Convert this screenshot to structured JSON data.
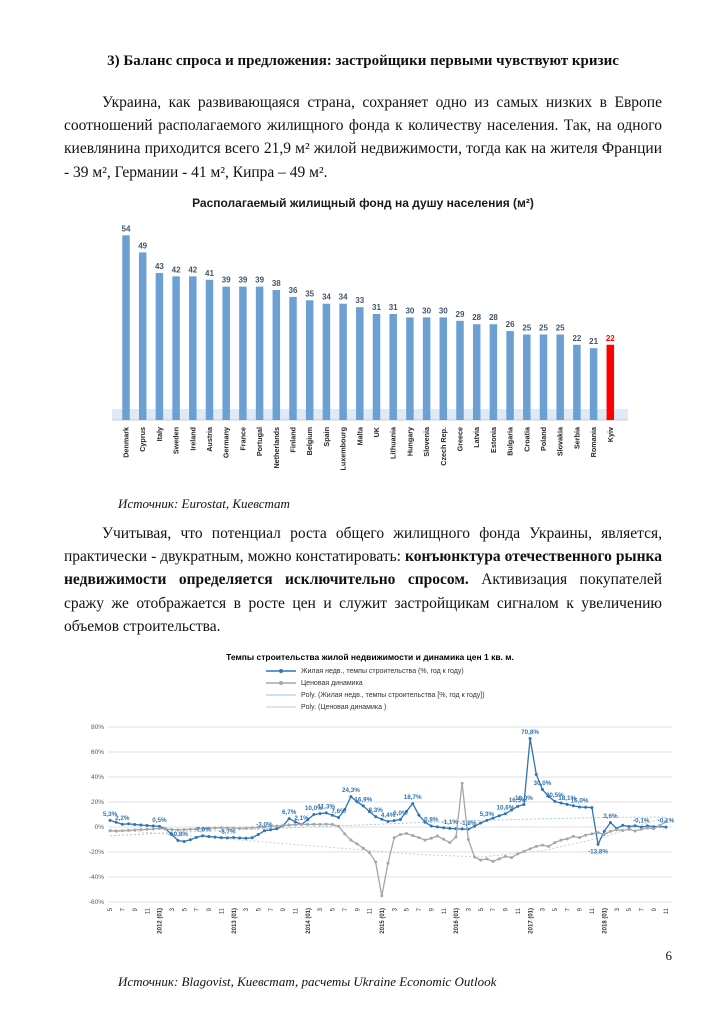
{
  "page": {
    "number": "6"
  },
  "heading": "3) Баланс спроса и предложения: застройщики первыми чувствуют кризис",
  "paragraph1": "Украина, как развивающаяся страна, сохраняет одно из самых низких в Европе соотношений располагаемого жилищного фонда к количеству населения. Так, на одного киевлянина приходится всего 21,9 м² жилой недвижимости, тогда как на жителя Франции - 39 м², Германии - 41 м², Кипра – 49 м².",
  "source1": "Источник: Eurostat, Киевстат",
  "paragraph2": {
    "normal1": "Учитывая, что потенциал роста общего жилищного фонда Украины, является, практически - двукратным, можно констатировать: ",
    "bold": "конъюнктура отечественного рынка недвижимости определяется исключительно спросом.",
    "normal2": " Активизация покупателей сражу же отображается в росте цен и служит застройщикам сигналом к увеличению объемов строительства."
  },
  "source2": "Источник: Blagovist, Киевстат, расчеты Ukraine Economic Outlook",
  "chart_data": [
    {
      "type": "bar",
      "title": "Располагаемый жилищный фонд на душу населения (м²)",
      "categories": [
        "Denmark",
        "Cyprus",
        "Italy",
        "Sweden",
        "Ireland",
        "Austria",
        "Germany",
        "France",
        "Portugal",
        "Netherlands",
        "Finland",
        "Belgium",
        "Spain",
        "Luxembourg",
        "Malta",
        "UK",
        "Lithuania",
        "Hungary",
        "Slovenia",
        "Czech Rep.",
        "Greece",
        "Latvia",
        "Estonia",
        "Bulgaria",
        "Croatia",
        "Poland",
        "Slovakia",
        "Serbia",
        "Romania",
        "Kyiv"
      ],
      "values": [
        54,
        49,
        43,
        42,
        42,
        41,
        39,
        39,
        39,
        38,
        36,
        35,
        34,
        34,
        33,
        31,
        31,
        30,
        30,
        30,
        29,
        28,
        28,
        26,
        25,
        25,
        25,
        22,
        21,
        22
      ],
      "highlight_category": "Kyiv",
      "bar_color": "#6CA0D3",
      "highlight_color": "#FF0000",
      "label_color": "#44546A",
      "ylim": [
        0,
        60
      ],
      "grid": false,
      "legend": "none"
    },
    {
      "type": "line",
      "title": "Темпы строительства жилой недвижимости и динамика цен 1 кв. м.",
      "ylim": [
        -60,
        80
      ],
      "grid": true,
      "legend_position": "top-left",
      "yticks": [
        "80%",
        "60%",
        "40%",
        "20%",
        "0%",
        "-20%",
        "-40%",
        "-60%"
      ],
      "x_labels": [
        "5",
        "7",
        "9",
        "11",
        "2012 (01)",
        "3",
        "5",
        "7",
        "9",
        "11",
        "2013 (01)",
        "3",
        "5",
        "7",
        "9",
        "11",
        "2014 (01)",
        "3",
        "5",
        "7",
        "9",
        "11",
        "2015 (01)",
        "3",
        "5",
        "7",
        "9",
        "11",
        "2016 (01)",
        "3",
        "5",
        "7",
        "9",
        "11",
        "2017 (01)",
        "3",
        "5",
        "7",
        "9",
        "11",
        "2018 (01)",
        "3",
        "5",
        "7",
        "9",
        "11"
      ],
      "x_label_month_step": 2,
      "series": [
        {
          "name": "Жилая недв., темпы строительства (%, год к году)",
          "color": "#2E75B6",
          "style": "solid",
          "markers": true,
          "step": 1,
          "values": [
            5.3,
            3.8,
            2.2,
            2.6,
            2.0,
            1.6,
            1.2,
            0.9,
            0.5,
            -1.5,
            -6.0,
            -10.8,
            -11.6,
            -10.2,
            -8.3,
            -7.0,
            -7.6,
            -8.1,
            -8.5,
            -8.7,
            -8.4,
            -8.8,
            -9.0,
            -8.6,
            -6.0,
            -3.0,
            -2.2,
            -1.4,
            1.0,
            6.7,
            4.2,
            2.1,
            5.8,
            10.0,
            10.7,
            11.3,
            9.4,
            7.6,
            14.0,
            24.3,
            20.2,
            16.9,
            12.3,
            8.3,
            6.2,
            4.4,
            5.1,
            6.0,
            12.5,
            18.7,
            9.5,
            3.8,
            0.8,
            0.1,
            -0.6,
            -1.1,
            -1.4,
            -1.6,
            -1.8,
            0.6,
            3.2,
            5.3,
            7.1,
            9.0,
            10.6,
            13.6,
            16.5,
            18.0,
            70.8,
            42.0,
            30.0,
            24.5,
            20.5,
            19.2,
            18.1,
            17.0,
            16.0,
            15.8,
            15.5,
            -13.8,
            -3.5,
            3.6,
            -1.2,
            1.4,
            0.4,
            1.0,
            -0.1,
            0.9,
            0.2,
            0.6,
            -0.1
          ]
        },
        {
          "name": "Ценовая динамика",
          "color": "#A6A6A6",
          "style": "solid",
          "markers": true,
          "step": 1,
          "values": [
            -3.0,
            -3.3,
            -3.0,
            -2.7,
            -2.4,
            -2.1,
            -1.9,
            -1.6,
            -1.2,
            -1.6,
            -2.0,
            -2.3,
            -2.1,
            -1.8,
            -1.5,
            -1.2,
            -1.0,
            -0.8,
            -0.6,
            -0.7,
            -0.9,
            -1.1,
            -0.9,
            -0.6,
            -0.3,
            0.0,
            0.4,
            0.8,
            1.2,
            1.6,
            1.9,
            2.1,
            2.0,
            2.2,
            2.1,
            2.3,
            2.1,
            0.6,
            -5.5,
            -10.5,
            -13.5,
            -17.0,
            -20.5,
            -28.0,
            -55.0,
            -29.0,
            -8.5,
            -6.0,
            -5.2,
            -6.8,
            -8.5,
            -10.5,
            -9.0,
            -7.2,
            -9.8,
            -12.5,
            -8.0,
            35.0,
            -10.0,
            -24.0,
            -26.5,
            -25.5,
            -27.5,
            -25.5,
            -23.5,
            -24.5,
            -21.5,
            -19.5,
            -17.5,
            -15.5,
            -14.5,
            -15.5,
            -12.5,
            -10.5,
            -9.5,
            -7.5,
            -8.5,
            -6.5,
            -5.5,
            -4.5,
            -6.0,
            -3.5,
            -2.2,
            -2.8,
            -1.8,
            -3.2,
            -1.8,
            -0.8,
            -1.4,
            1.2,
            4.5
          ]
        },
        {
          "name": "Poly. (Жилая недв., темпы строительства [%, год к году])",
          "color": "#9DC3E6",
          "style": "dashed",
          "markers": false,
          "step": 10,
          "values": [
            -7.0,
            -4.5,
            -2.5,
            -0.5,
            1.5,
            3.5,
            5.2,
            6.6,
            7.6,
            8.0
          ]
        },
        {
          "name": "Poly. (Ценовая динамика )",
          "color": "#C9C9C9",
          "style": "dashed",
          "markers": false,
          "step": 10,
          "values": [
            -2.0,
            -6.0,
            -10.0,
            -14.0,
            -18.0,
            -22.0,
            -24.0,
            -19.0,
            -8.0,
            8.0
          ]
        }
      ],
      "point_labels": [
        {
          "i": 0,
          "t": "5,3%"
        },
        {
          "i": 2,
          "t": "2,2%"
        },
        {
          "i": 8,
          "t": "0,5%"
        },
        {
          "i": 11,
          "t": "-10,8%"
        },
        {
          "i": 15,
          "t": "-7,0%"
        },
        {
          "i": 19,
          "t": "-8,7%"
        },
        {
          "i": 25,
          "t": "-3,0%"
        },
        {
          "i": 29,
          "t": "6,7%"
        },
        {
          "i": 31,
          "t": "2,1%"
        },
        {
          "i": 33,
          "t": "10,0%"
        },
        {
          "i": 35,
          "t": "11,3%"
        },
        {
          "i": 37,
          "t": "7,6%"
        },
        {
          "i": 39,
          "t": "24,3%"
        },
        {
          "i": 41,
          "t": "16,9%"
        },
        {
          "i": 43,
          "t": "8,3%"
        },
        {
          "i": 45,
          "t": "4,4%"
        },
        {
          "i": 47,
          "t": "6,0%"
        },
        {
          "i": 49,
          "t": "18,7%"
        },
        {
          "i": 52,
          "t": "0,8%"
        },
        {
          "i": 55,
          "t": "-1,1%"
        },
        {
          "i": 58,
          "t": "-1,8%"
        },
        {
          "i": 61,
          "t": "5,3%"
        },
        {
          "i": 64,
          "t": "10,6%"
        },
        {
          "i": 66,
          "t": "16,5%"
        },
        {
          "i": 67,
          "t": "18,0%"
        },
        {
          "i": 68,
          "t": "70,8%"
        },
        {
          "i": 70,
          "t": "30,0%"
        },
        {
          "i": 72,
          "t": "20,5%"
        },
        {
          "i": 74,
          "t": "18,1%"
        },
        {
          "i": 76,
          "t": "16,0%"
        },
        {
          "i": 79,
          "t": "-13,8%",
          "below": true
        },
        {
          "i": 81,
          "t": "3,6%"
        },
        {
          "i": 86,
          "t": "-0,1%"
        },
        {
          "i": 90,
          "t": "-0,1%"
        }
      ]
    }
  ]
}
